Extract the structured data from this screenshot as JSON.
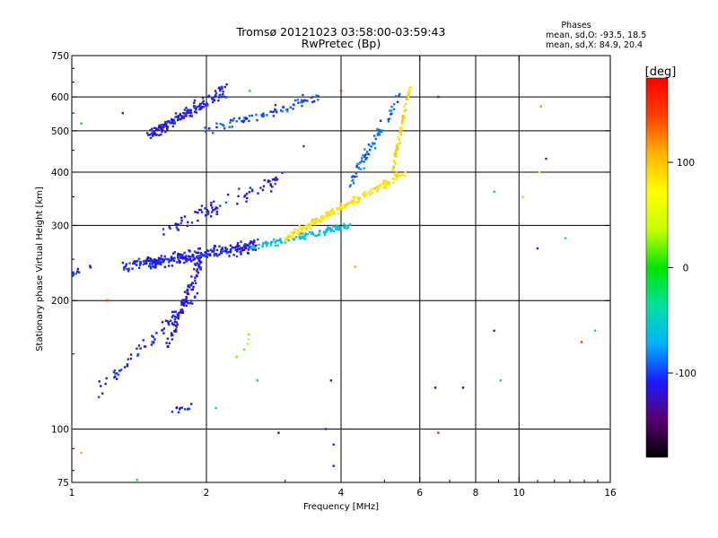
{
  "header": {
    "title_line1": "Tromsø 20121023 03:58:00-03:59:43",
    "title_line2": "RwPretec (Bp)"
  },
  "stats": {
    "heading": "Phases",
    "line_o": "mean, sd,O: -93.5, 18.5",
    "line_x": "mean, sd,X:  84.9, 20.4"
  },
  "colorbar": {
    "label": "[deg]",
    "range": [
      -180,
      180
    ],
    "ticks": [
      {
        "value": 100,
        "label": "100"
      },
      {
        "value": 0,
        "label": "0"
      },
      {
        "value": -100,
        "label": "-100"
      }
    ],
    "colormap": [
      "#000000",
      "#5a0070",
      "#1a1aff",
      "#00b4ff",
      "#00e0a0",
      "#00e600",
      "#c8ff00",
      "#ffff00",
      "#ffb400",
      "#ff4000",
      "#ff0000"
    ]
  },
  "chart_data": {
    "type": "scatter",
    "xlabel": "Frequency [MHz]",
    "ylabel": "Stationary phase Virtual Height [km]",
    "x_scale": "log",
    "y_scale": "log",
    "xlim": [
      1,
      16
    ],
    "ylim": [
      75,
      750
    ],
    "x_ticks": [
      {
        "value": 1,
        "label": "1"
      },
      {
        "value": 2,
        "label": "2"
      },
      {
        "value": 4,
        "label": "4"
      },
      {
        "value": 6,
        "label": "6"
      },
      {
        "value": 8,
        "label": "8"
      },
      {
        "value": 10,
        "label": "10"
      },
      {
        "value": 16,
        "label": "16"
      }
    ],
    "y_ticks": [
      {
        "value": 75,
        "label": "75"
      },
      {
        "value": 100,
        "label": "100"
      },
      {
        "value": 200,
        "label": "200"
      },
      {
        "value": 300,
        "label": "300"
      },
      {
        "value": 400,
        "label": "400"
      },
      {
        "value": 500,
        "label": "500"
      },
      {
        "value": 600,
        "label": "600"
      },
      {
        "value": 750,
        "label": "750"
      }
    ],
    "grid_x": [
      2,
      4,
      6,
      8,
      10
    ],
    "grid_y": [
      100,
      200,
      300,
      400,
      500,
      600
    ],
    "color_variable": "phase [deg]",
    "segments": [
      {
        "name": "",
        "f0": 1.12,
        "f1": 1.9,
        "h0": 120,
        "h1": 205,
        "phase": -110,
        "count": 70,
        "spread_f": 0.03,
        "spread_h": 0.05
      },
      {
        "name": "",
        "f0": 1.65,
        "f1": 1.95,
        "h0": 160,
        "h1": 250,
        "phase": -115,
        "count": 90,
        "spread_f": 0.02,
        "spread_h": 0.06
      },
      {
        "name": "",
        "f0": 1.3,
        "f1": 1.6,
        "h0": 240,
        "h1": 250,
        "phase": -108,
        "count": 60,
        "spread_f": 0.03,
        "spread_h": 0.04
      },
      {
        "name": "",
        "f0": 1.5,
        "f1": 2.6,
        "h0": 245,
        "h1": 270,
        "phase": -110,
        "count": 220,
        "spread_f": 0.02,
        "spread_h": 0.05
      },
      {
        "name": "",
        "f0": 2.5,
        "f1": 4.2,
        "h0": 265,
        "h1": 300,
        "phase": -60,
        "count": 110,
        "spread_f": 0.01,
        "spread_h": 0.025
      },
      {
        "name": "",
        "f0": 3.0,
        "f1": 5.6,
        "h0": 280,
        "h1": 400,
        "phase": 85,
        "count": 200,
        "spread_f": 0.012,
        "spread_h": 0.03
      },
      {
        "name": "",
        "f0": 5.2,
        "f1": 5.7,
        "h0": 400,
        "h1": 630,
        "phase": 90,
        "count": 70,
        "spread_f": 0.01,
        "spread_h": 0.03
      },
      {
        "name": "",
        "f0": 4.2,
        "f1": 5.4,
        "h0": 380,
        "h1": 600,
        "phase": -90,
        "count": 70,
        "spread_f": 0.015,
        "spread_h": 0.06
      },
      {
        "name": "",
        "f0": 1.5,
        "f1": 2.2,
        "h0": 490,
        "h1": 620,
        "phase": -112,
        "count": 160,
        "spread_f": 0.03,
        "spread_h": 0.05
      },
      {
        "name": "",
        "f0": 2.0,
        "f1": 3.6,
        "h0": 500,
        "h1": 600,
        "phase": -95,
        "count": 80,
        "spread_f": 0.03,
        "spread_h": 0.04
      },
      {
        "name": "",
        "f0": 1.6,
        "f1": 3.0,
        "h0": 290,
        "h1": 390,
        "phase": -110,
        "count": 80,
        "spread_f": 0.04,
        "spread_h": 0.07
      },
      {
        "name": "",
        "f0": 1.0,
        "f1": 1.1,
        "h0": 230,
        "h1": 240,
        "phase": -105,
        "count": 12,
        "spread_f": 0.02,
        "spread_h": 0.02
      },
      {
        "name": "",
        "f0": 1.7,
        "f1": 1.85,
        "h0": 110,
        "h1": 113,
        "phase": -110,
        "count": 12,
        "spread_f": 0.02,
        "spread_h": 0.02
      },
      {
        "name": "",
        "f0": 2.3,
        "f1": 2.5,
        "h0": 145,
        "h1": 165,
        "phase": 30,
        "count": 6,
        "spread_f": 0.02,
        "spread_h": 0.05
      }
    ],
    "isolated_points": [
      {
        "x": 1.05,
        "y": 88,
        "phase": 110
      },
      {
        "x": 1.4,
        "y": 76,
        "phase": -5
      },
      {
        "x": 2.1,
        "y": 112,
        "phase": -20
      },
      {
        "x": 2.9,
        "y": 98,
        "phase": -140
      },
      {
        "x": 3.7,
        "y": 100,
        "phase": -100
      },
      {
        "x": 3.85,
        "y": 92,
        "phase": -105
      },
      {
        "x": 3.85,
        "y": 82,
        "phase": -110
      },
      {
        "x": 3.8,
        "y": 130,
        "phase": -108
      },
      {
        "x": 6.5,
        "y": 125,
        "phase": -120
      },
      {
        "x": 6.6,
        "y": 98,
        "phase": 160
      },
      {
        "x": 7.5,
        "y": 125,
        "phase": -140
      },
      {
        "x": 8.8,
        "y": 170,
        "phase": -105
      },
      {
        "x": 9.1,
        "y": 130,
        "phase": -20
      },
      {
        "x": 8.8,
        "y": 360,
        "phase": -10
      },
      {
        "x": 11.0,
        "y": 265,
        "phase": -115
      },
      {
        "x": 11.1,
        "y": 400,
        "phase": 55
      },
      {
        "x": 11.5,
        "y": 430,
        "phase": -105
      },
      {
        "x": 11.2,
        "y": 570,
        "phase": 120
      },
      {
        "x": 12.7,
        "y": 280,
        "phase": -30
      },
      {
        "x": 13.8,
        "y": 160,
        "phase": 150
      },
      {
        "x": 14.8,
        "y": 170,
        "phase": -40
      },
      {
        "x": 6.6,
        "y": 600,
        "phase": -105
      },
      {
        "x": 4.3,
        "y": 240,
        "phase": 110
      },
      {
        "x": 4.0,
        "y": 620,
        "phase": 160
      },
      {
        "x": 3.3,
        "y": 460,
        "phase": -100
      },
      {
        "x": 2.5,
        "y": 620,
        "phase": -5
      },
      {
        "x": 1.3,
        "y": 550,
        "phase": -108
      },
      {
        "x": 1.05,
        "y": 520,
        "phase": 0
      },
      {
        "x": 1.2,
        "y": 200,
        "phase": 150
      },
      {
        "x": 2.6,
        "y": 130,
        "phase": -20
      },
      {
        "x": 10.2,
        "y": 350,
        "phase": 100
      }
    ]
  }
}
